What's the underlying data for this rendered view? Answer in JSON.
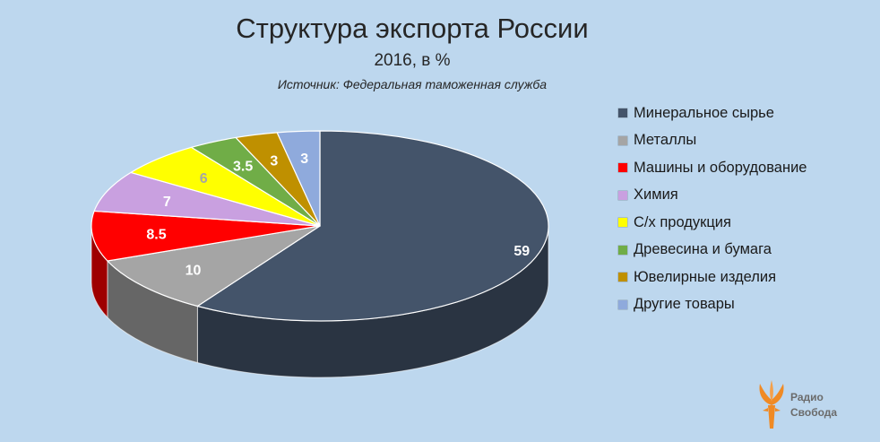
{
  "title": "Структура экспорта России",
  "subtitle": "2016, в %",
  "source": "Источник: Федеральная таможенная служба",
  "logo": {
    "line1": "Радио",
    "line2": "Свобода"
  },
  "chart_data": {
    "type": "pie",
    "style": "3d",
    "categories": [
      "Минеральное сырье",
      "Металлы",
      "Машины и оборудование",
      "Химия",
      "С/х продукция",
      "Древесина и бумага",
      "Ювелирные изделия",
      "Другие товары"
    ],
    "values": [
      59,
      10,
      8.5,
      7,
      6,
      3.5,
      3,
      3
    ],
    "data_labels": [
      "59",
      "10",
      "8.5",
      "7",
      "6",
      "3.5",
      "3",
      "3"
    ],
    "colors": [
      "#44546a",
      "#a5a5a5",
      "#ff0000",
      "#c9a0e0",
      "#ffff00",
      "#70ad47",
      "#bf9000",
      "#8faadc"
    ],
    "label_colors": [
      "#ffffff",
      "#ffffff",
      "#ffffff",
      "#ffffff",
      "#a5a5a5",
      "#ffffff",
      "#ffffff",
      "#ffffff"
    ],
    "legend_position": "right"
  }
}
